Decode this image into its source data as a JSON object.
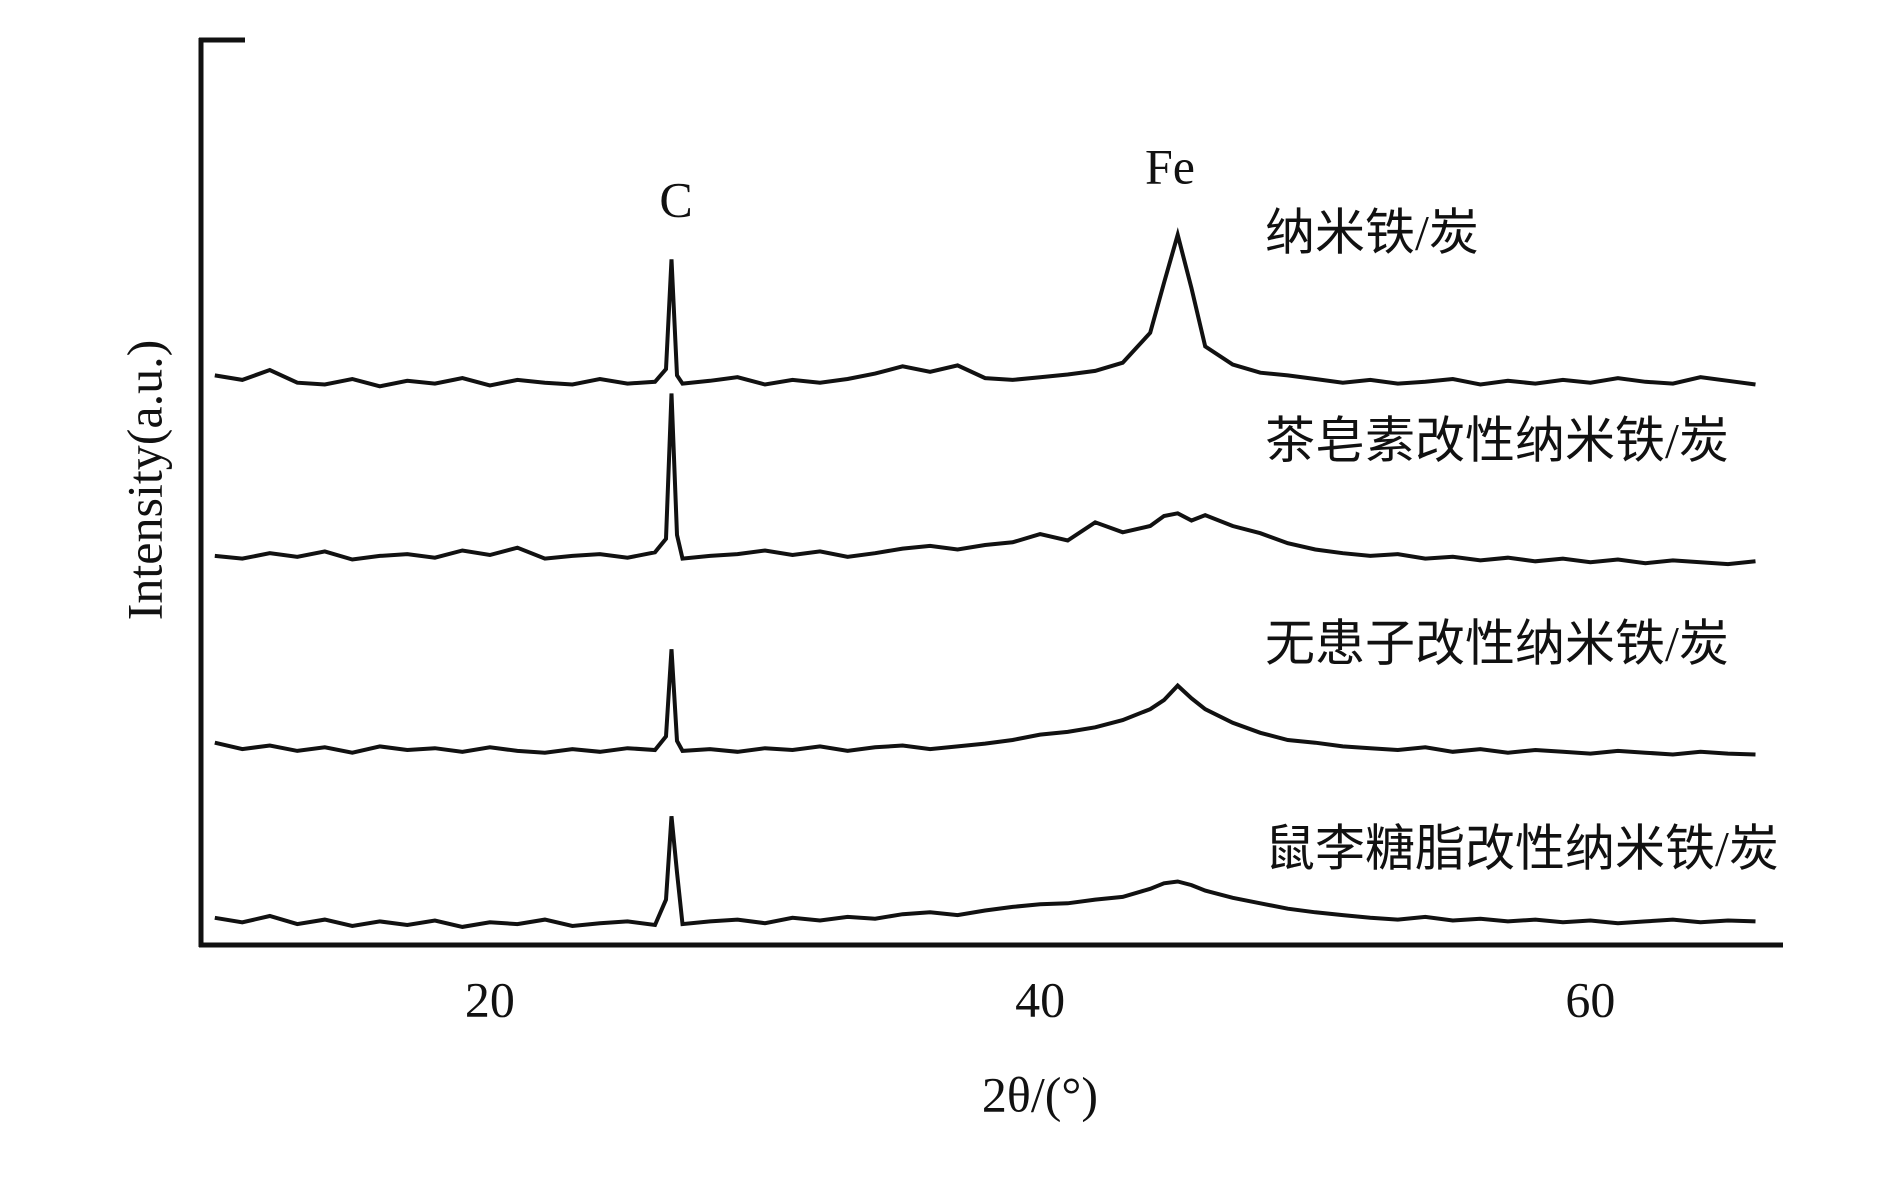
{
  "chart_data": {
    "type": "line",
    "xlabel": "2θ/(°)",
    "ylabel": "Intensity(a.u.)",
    "annotations": [
      "C",
      "Fe"
    ],
    "xlim": [
      9.5,
      67
    ],
    "xticks": [
      20,
      40,
      60
    ],
    "ylim": [
      0,
      100
    ],
    "x": [
      10,
      11,
      12,
      13,
      14,
      15,
      16,
      17,
      18,
      19,
      20,
      21,
      22,
      23,
      24,
      25,
      26,
      26.4,
      26.6,
      26.8,
      27,
      28,
      29,
      30,
      31,
      32,
      33,
      34,
      35,
      36,
      37,
      38,
      39,
      40,
      41,
      42,
      43,
      44,
      44.5,
      45,
      45.5,
      46,
      47,
      48,
      49,
      50,
      51,
      52,
      53,
      54,
      55,
      56,
      57,
      58,
      59,
      60,
      61,
      62,
      63,
      64,
      65,
      66
    ],
    "series": [
      {
        "name": "纳米铁/炭",
        "color": "#111111",
        "values": [
          62.8,
          62.3,
          63.4,
          62.0,
          61.8,
          62.4,
          61.6,
          62.2,
          61.9,
          62.5,
          61.7,
          62.3,
          62.0,
          61.8,
          62.4,
          61.9,
          62.1,
          63.5,
          75.6,
          62.8,
          61.9,
          62.2,
          62.6,
          61.8,
          62.3,
          62.0,
          62.4,
          63.0,
          63.8,
          63.2,
          63.9,
          62.5,
          62.3,
          62.6,
          62.9,
          63.3,
          64.2,
          67.5,
          73.0,
          78.3,
          72.4,
          66.0,
          64.0,
          63.1,
          62.8,
          62.4,
          62.0,
          62.3,
          61.9,
          62.1,
          62.4,
          61.8,
          62.2,
          61.9,
          62.3,
          62.0,
          62.5,
          62.1,
          61.9,
          62.6,
          62.2,
          61.8
        ]
      },
      {
        "name": "茶皂素改性纳米铁/炭",
        "color": "#111111",
        "values": [
          42.9,
          42.6,
          43.2,
          42.8,
          43.4,
          42.5,
          42.9,
          43.1,
          42.7,
          43.5,
          43.0,
          43.8,
          42.6,
          42.9,
          43.1,
          42.7,
          43.3,
          44.8,
          60.8,
          45.2,
          42.6,
          42.9,
          43.1,
          43.5,
          43.0,
          43.4,
          42.8,
          43.2,
          43.7,
          44.0,
          43.6,
          44.1,
          44.4,
          45.3,
          44.6,
          46.6,
          45.5,
          46.2,
          47.3,
          47.6,
          46.8,
          47.4,
          46.2,
          45.4,
          44.3,
          43.6,
          43.2,
          42.9,
          43.1,
          42.6,
          42.8,
          42.4,
          42.7,
          42.3,
          42.6,
          42.2,
          42.5,
          42.1,
          42.4,
          42.2,
          42.0,
          42.3
        ]
      },
      {
        "name": "无患子改性纳米铁/炭",
        "color": "#111111",
        "values": [
          22.3,
          21.6,
          22.0,
          21.4,
          21.8,
          21.2,
          21.9,
          21.5,
          21.7,
          21.3,
          21.8,
          21.4,
          21.2,
          21.6,
          21.3,
          21.7,
          21.5,
          23.0,
          32.6,
          22.5,
          21.4,
          21.6,
          21.3,
          21.7,
          21.5,
          21.9,
          21.4,
          21.8,
          22.0,
          21.6,
          21.9,
          22.2,
          22.6,
          23.2,
          23.5,
          24.0,
          24.8,
          26.0,
          27.0,
          28.6,
          27.2,
          26.0,
          24.5,
          23.4,
          22.6,
          22.3,
          21.9,
          21.7,
          21.5,
          21.8,
          21.3,
          21.6,
          21.2,
          21.5,
          21.3,
          21.1,
          21.4,
          21.2,
          21.0,
          21.3,
          21.1,
          21.0
        ]
      },
      {
        "name": "鼠李糖脂改性纳米铁/炭",
        "color": "#111111",
        "values": [
          3.0,
          2.5,
          3.2,
          2.3,
          2.8,
          2.1,
          2.6,
          2.2,
          2.7,
          2.0,
          2.5,
          2.3,
          2.8,
          2.1,
          2.4,
          2.6,
          2.2,
          5.0,
          14.2,
          8.0,
          2.3,
          2.6,
          2.8,
          2.4,
          3.0,
          2.7,
          3.1,
          2.9,
          3.4,
          3.6,
          3.3,
          3.8,
          4.2,
          4.5,
          4.6,
          5.0,
          5.3,
          6.2,
          6.8,
          7.0,
          6.6,
          6.0,
          5.2,
          4.6,
          4.0,
          3.6,
          3.3,
          3.0,
          2.8,
          3.1,
          2.7,
          2.9,
          2.6,
          2.8,
          2.5,
          2.7,
          2.4,
          2.6,
          2.8,
          2.5,
          2.7,
          2.6
        ]
      }
    ]
  }
}
